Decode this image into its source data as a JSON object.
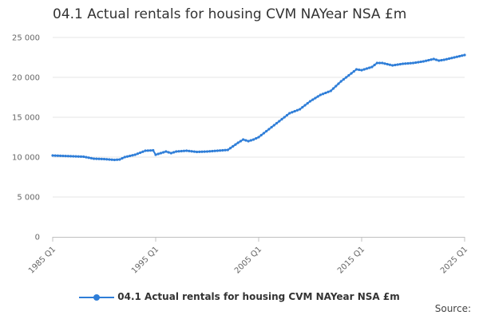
{
  "title": "04.1 Actual rentals for housing CVM NAYear NSA £m",
  "source_label": "Source:",
  "chart_data": {
    "type": "line",
    "title": "04.1 Actual rentals for housing CVM NAYear NSA £m",
    "xlabel": "",
    "ylabel": "",
    "ylim": [
      0,
      25000
    ],
    "y_ticks": [
      "0",
      "5 000",
      "10 000",
      "15 000",
      "20 000",
      "25 000"
    ],
    "y_tick_values": [
      0,
      5000,
      10000,
      15000,
      20000,
      25000
    ],
    "x_ticks": [
      "1985 Q1",
      "1995 Q1",
      "2005 Q1",
      "2015 Q1",
      "2025 Q1"
    ],
    "x_tick_values": [
      1985,
      1995,
      2005,
      2015,
      2025
    ],
    "xlim": [
      1985,
      2025
    ],
    "grid": true,
    "legend": "bottom-center",
    "colors": {
      "series": "#2f7ed8",
      "grid": "#e6e6e6",
      "axis": "#c0c0c0"
    },
    "series": [
      {
        "name": "04.1 Actual rentals for housing CVM NAYear NSA £m",
        "points": [
          [
            1985,
            10200
          ],
          [
            1986,
            10150
          ],
          [
            1987,
            10100
          ],
          [
            1988,
            10050
          ],
          [
            1989,
            9800
          ],
          [
            1990,
            9750
          ],
          [
            1991,
            9650
          ],
          [
            1991.5,
            9700
          ],
          [
            1992,
            10000
          ],
          [
            1993,
            10300
          ],
          [
            1994,
            10800
          ],
          [
            1994.75,
            10850
          ],
          [
            1995,
            10300
          ],
          [
            1995.5,
            10500
          ],
          [
            1996,
            10700
          ],
          [
            1996.5,
            10500
          ],
          [
            1997,
            10700
          ],
          [
            1998,
            10800
          ],
          [
            1999,
            10650
          ],
          [
            2000,
            10700
          ],
          [
            2001,
            10800
          ],
          [
            2002,
            10900
          ],
          [
            2003,
            11800
          ],
          [
            2003.5,
            12200
          ],
          [
            2004,
            12000
          ],
          [
            2004.5,
            12200
          ],
          [
            2005,
            12500
          ],
          [
            2006,
            13500
          ],
          [
            2007,
            14500
          ],
          [
            2008,
            15500
          ],
          [
            2009,
            16000
          ],
          [
            2010,
            17000
          ],
          [
            2011,
            17800
          ],
          [
            2012,
            18300
          ],
          [
            2013,
            19500
          ],
          [
            2014,
            20500
          ],
          [
            2014.5,
            21000
          ],
          [
            2015,
            20900
          ],
          [
            2016,
            21300
          ],
          [
            2016.5,
            21800
          ],
          [
            2017,
            21800
          ],
          [
            2018,
            21500
          ],
          [
            2019,
            21700
          ],
          [
            2020,
            21800
          ],
          [
            2021,
            22000
          ],
          [
            2022,
            22300
          ],
          [
            2022.5,
            22100
          ],
          [
            2023,
            22200
          ],
          [
            2024,
            22500
          ],
          [
            2025,
            22800
          ]
        ]
      }
    ]
  }
}
